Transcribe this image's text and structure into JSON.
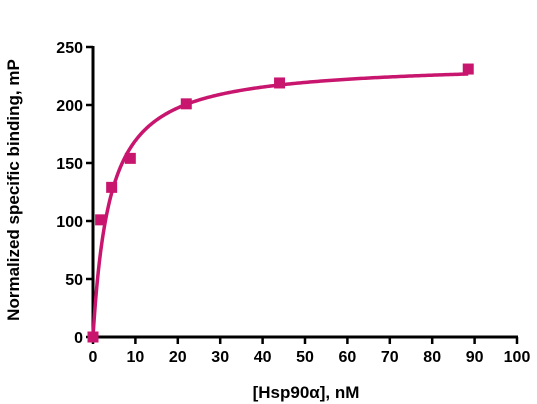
{
  "chart_data": {
    "type": "scatter",
    "xlabel": "[Hsp90α], nM",
    "ylabel": "Normalized specific binding, mP",
    "xlim": [
      0,
      100
    ],
    "ylim": [
      0,
      250
    ],
    "xticks": [
      "0",
      "10",
      "20",
      "30",
      "40",
      "50",
      "60",
      "70",
      "80",
      "90",
      "100"
    ],
    "yticks": [
      "0",
      "50",
      "100",
      "150",
      "200",
      "250"
    ],
    "grid": false,
    "color": "#c8156e",
    "series": [
      {
        "x": [
          0,
          1.8,
          4.4,
          8.8,
          22,
          44,
          88.5
        ],
        "y": [
          0,
          101,
          129,
          154,
          201,
          219,
          231
        ]
      }
    ],
    "fit_curve": {
      "model": "one-site binding",
      "Bmax": 237,
      "Kd": 4
    }
  }
}
